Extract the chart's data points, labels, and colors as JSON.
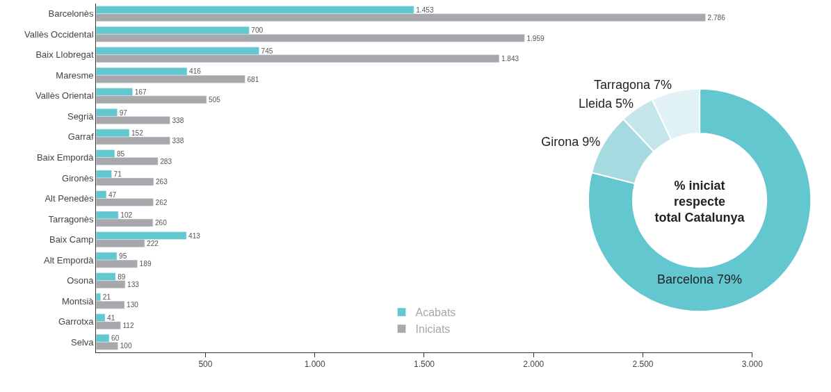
{
  "chart_data": [
    {
      "type": "bar",
      "orientation": "horizontal",
      "categories": [
        "Barcelonès",
        "Vallès Occidental",
        "Baix Llobregat",
        "Maresme",
        "Vallès Oriental",
        "Segrià",
        "Garraf",
        "Baix Empordà",
        "Gironès",
        "Alt Penedès",
        "Tarragonès",
        "Baix Camp",
        "Alt Empordà",
        "Osona",
        "Montsià",
        "Garrotxa",
        "Selva"
      ],
      "series": [
        {
          "name": "Acabats",
          "color": "#63c7cf",
          "values": [
            1453,
            700,
            745,
            416,
            167,
            97,
            152,
            85,
            71,
            47,
            102,
            413,
            95,
            89,
            21,
            41,
            60
          ],
          "value_labels": [
            "1.453",
            "700",
            "745",
            "416",
            "167",
            "97",
            "152",
            "85",
            "71",
            "47",
            "102",
            "413",
            "95",
            "89",
            "21",
            "41",
            "60"
          ]
        },
        {
          "name": "Iniciats",
          "color": "#a7a8ac",
          "values": [
            2786,
            1959,
            1843,
            681,
            505,
            338,
            338,
            283,
            263,
            262,
            260,
            222,
            189,
            133,
            130,
            112,
            100
          ],
          "value_labels": [
            "2.786",
            "1.959",
            "1.843",
            "681",
            "505",
            "338",
            "338",
            "283",
            "263",
            "262",
            "260",
            "222",
            "189",
            "133",
            "130",
            "112",
            "100"
          ]
        }
      ],
      "xlim": [
        0,
        3000
      ],
      "xticks": [
        500,
        {
          "value": 1000,
          "label": "1.000"
        },
        {
          "value": 1500,
          "label": "1.500"
        },
        {
          "value": 2000,
          "label": "2.000"
        },
        {
          "value": 2500,
          "label": "2.500"
        },
        {
          "value": 3000,
          "label": "3.000"
        }
      ],
      "legend": "bottom"
    },
    {
      "type": "donut",
      "categories": [
        "Barcelona",
        "Girona",
        "Lleida",
        "Tarragona"
      ],
      "values": [
        79,
        9,
        5,
        7
      ],
      "colors": [
        "#63c7cf",
        "#a5dbe0",
        "#c4e6ea",
        "#e0f2f4"
      ],
      "value_labels": [
        "79%",
        "9%",
        "5%",
        "7%"
      ],
      "annotations": [
        "% iniciat\nrespecte\ntotal Catalunya"
      ]
    }
  ]
}
